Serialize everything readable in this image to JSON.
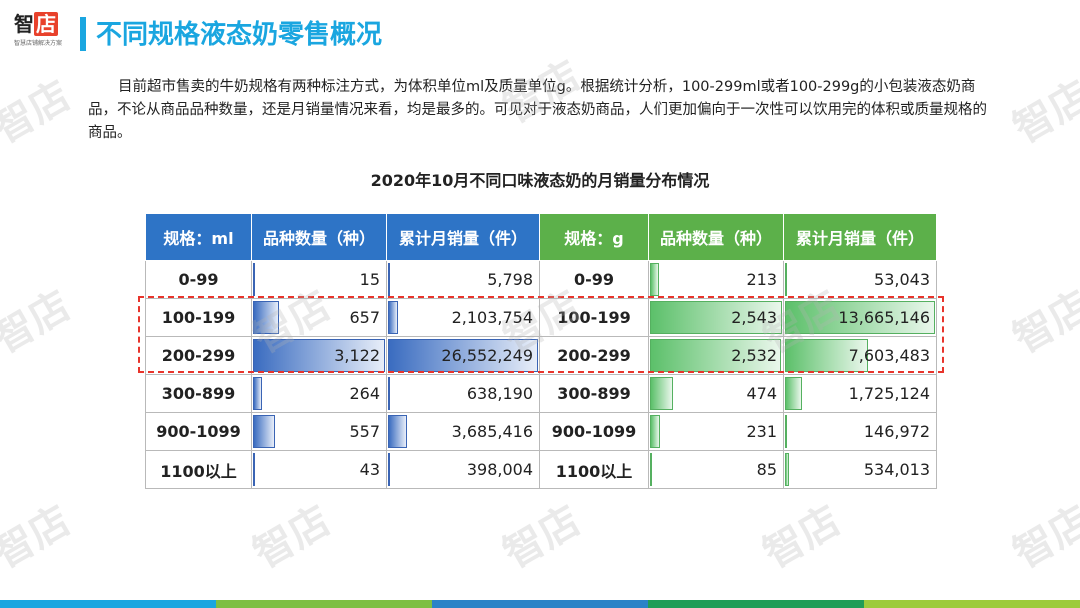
{
  "header": {
    "logo_text": "智店",
    "logo_char1": "智",
    "logo_char2": "店",
    "logo_subtitle": "智慧店铺解决方案",
    "title": "不同规格液态奶零售概况"
  },
  "intro": "目前超市售卖的牛奶规格有两种标注方式，为体积单位ml及质量单位g。根据统计分析，100-299ml或者100-299g的小包装液态奶商品，不论从商品品种数量，还是月销量情况来看，均是最多的。可见对于液态奶商品，人们更加偏向于一次性可以饮用完的体积或质量规格的商品。",
  "table": {
    "title": "2020年10月不同口味液态奶的月销量分布情况",
    "headers": [
      "规格：ml",
      "品种数量（种）",
      "累计月销量（件）",
      "规格：g",
      "品种数量（种）",
      "累计月销量（件）"
    ],
    "rows": [
      {
        "ml_spec": "0-99",
        "ml_count": "15",
        "ml_sales": "5,798",
        "g_spec": "0-99",
        "g_count": "213",
        "g_sales": "53,043",
        "ml_count_frac": 0.005,
        "ml_sales_frac": 0.0002,
        "g_count_frac": 0.084,
        "g_sales_frac": 0.004
      },
      {
        "ml_spec": "100-199",
        "ml_count": "657",
        "ml_sales": "2,103,754",
        "g_spec": "100-199",
        "g_count": "2,543",
        "g_sales": "13,665,146",
        "ml_count_frac": 0.21,
        "ml_sales_frac": 0.079,
        "g_count_frac": 1.0,
        "g_sales_frac": 1.0
      },
      {
        "ml_spec": "200-299",
        "ml_count": "3,122",
        "ml_sales": "26,552,249",
        "g_spec": "200-299",
        "g_count": "2,532",
        "g_sales": "7,603,483",
        "ml_count_frac": 1.0,
        "ml_sales_frac": 1.0,
        "g_count_frac": 0.996,
        "g_sales_frac": 0.556
      },
      {
        "ml_spec": "300-899",
        "ml_count": "264",
        "ml_sales": "638,190",
        "g_spec": "300-899",
        "g_count": "474",
        "g_sales": "1,725,124",
        "ml_count_frac": 0.085,
        "ml_sales_frac": 0.024,
        "g_count_frac": 0.186,
        "g_sales_frac": 0.126
      },
      {
        "ml_spec": "900-1099",
        "ml_count": "557",
        "ml_sales": "3,685,416",
        "g_spec": "900-1099",
        "g_count": "231",
        "g_sales": "146,972",
        "ml_count_frac": 0.178,
        "ml_sales_frac": 0.139,
        "g_count_frac": 0.091,
        "g_sales_frac": 0.011
      },
      {
        "ml_spec": "1100以上",
        "ml_count": "43",
        "ml_sales": "398,004",
        "g_spec": "1100以上",
        "g_count": "85",
        "g_sales": "534,013",
        "ml_count_frac": 0.014,
        "ml_sales_frac": 0.015,
        "g_count_frac": 0.033,
        "g_sales_frac": 0.039
      }
    ]
  },
  "watermark_text": "智店",
  "colors": {
    "title": "#1aa6e0",
    "header_blue": "#2e74c6",
    "header_green": "#5cb04a",
    "highlight": "#e8342b",
    "stripes": [
      "#1aa6e0",
      "#7dbf43",
      "#2a83c7",
      "#1f9d57",
      "#9ccb3b"
    ]
  }
}
